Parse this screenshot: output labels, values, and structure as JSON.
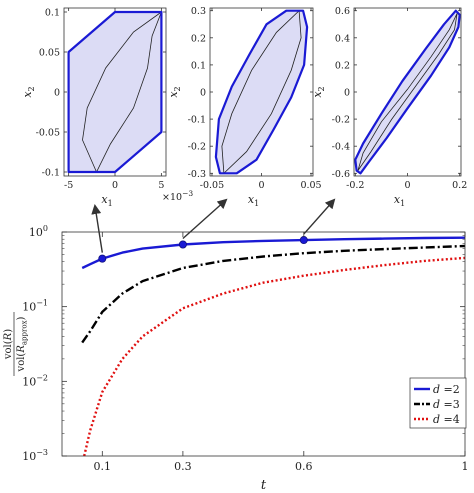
{
  "chart_data": [
    {
      "type": "line",
      "subtype": "reachable-set-x1-x2",
      "xlabel": "x_1",
      "ylabel": "x_2",
      "x_exponent_label": "×10",
      "x_exponent_power": "−3",
      "xlim": [
        -0.0055,
        0.0055
      ],
      "ylim": [
        -0.105,
        0.105
      ],
      "xticks": [
        -0.005,
        0,
        0.005
      ],
      "xtick_labels": [
        "-5",
        "0",
        "5"
      ],
      "yticks": [
        -0.1,
        -0.05,
        0,
        0.05,
        0.1
      ],
      "ytick_labels": [
        "-0.1",
        "-0.05",
        "0",
        "0.05",
        "0.1"
      ],
      "outer_polygon": [
        [
          -0.005,
          -0.1
        ],
        [
          -0.005,
          0.05
        ],
        [
          0.0,
          0.1
        ],
        [
          0.005,
          0.1
        ],
        [
          0.005,
          -0.05
        ],
        [
          0.0,
          -0.1
        ]
      ],
      "inner_region": [
        [
          -0.002,
          -0.1
        ],
        [
          -0.0035,
          -0.06
        ],
        [
          -0.003,
          -0.02
        ],
        [
          -0.001,
          0.03
        ],
        [
          0.002,
          0.075
        ],
        [
          0.005,
          0.1
        ],
        [
          0.004,
          0.07
        ],
        [
          0.0035,
          0.03
        ],
        [
          0.002,
          -0.02
        ],
        [
          -0.0005,
          -0.065
        ]
      ],
      "outer_color": "#1a1ad4",
      "fill_color": "#dcdcf5"
    },
    {
      "type": "line",
      "subtype": "reachable-set-x1-x2",
      "xlabel": "x_1",
      "ylabel": "x_2",
      "xlim": [
        -0.052,
        0.052
      ],
      "ylim": [
        -0.31,
        0.31
      ],
      "xticks": [
        -0.05,
        0,
        0.05
      ],
      "xtick_labels": [
        "-0.05",
        "0",
        "0.05"
      ],
      "yticks": [
        -0.3,
        -0.2,
        -0.1,
        0,
        0.1,
        0.2,
        0.3
      ],
      "ytick_labels": [
        "-0.3",
        "-0.2",
        "-0.1",
        "0",
        "0.1",
        "0.2",
        "0.3"
      ],
      "outer_polygon": [
        [
          -0.042,
          -0.3
        ],
        [
          -0.046,
          -0.24
        ],
        [
          -0.043,
          -0.1
        ],
        [
          -0.03,
          0.02
        ],
        [
          -0.012,
          0.14
        ],
        [
          0.005,
          0.25
        ],
        [
          0.025,
          0.3
        ],
        [
          0.042,
          0.3
        ],
        [
          0.046,
          0.24
        ],
        [
          0.043,
          0.1
        ],
        [
          0.03,
          -0.02
        ],
        [
          0.012,
          -0.14
        ],
        [
          -0.005,
          -0.25
        ],
        [
          -0.025,
          -0.3
        ]
      ],
      "inner_region": [
        [
          -0.038,
          -0.3
        ],
        [
          -0.04,
          -0.2
        ],
        [
          -0.03,
          -0.08
        ],
        [
          -0.01,
          0.08
        ],
        [
          0.015,
          0.22
        ],
        [
          0.038,
          0.3
        ],
        [
          0.04,
          0.2
        ],
        [
          0.03,
          0.08
        ],
        [
          0.01,
          -0.08
        ],
        [
          -0.015,
          -0.22
        ]
      ],
      "outer_color": "#1a1ad4",
      "fill_color": "#dcdcf5"
    },
    {
      "type": "line",
      "subtype": "reachable-set-x1-x2",
      "xlabel": "x_1",
      "ylabel": "x_2",
      "xlim": [
        -0.205,
        0.205
      ],
      "ylim": [
        -0.62,
        0.62
      ],
      "xticks": [
        -0.2,
        0,
        0.2
      ],
      "xtick_labels": [
        "-0.2",
        "0",
        "0.2"
      ],
      "yticks": [
        -0.6,
        -0.4,
        -0.2,
        0,
        0.2,
        0.4,
        0.6
      ],
      "ytick_labels": [
        "-0.6",
        "-0.4",
        "-0.2",
        "0",
        "0.2",
        "0.4",
        "0.6"
      ],
      "outer_polygon": [
        [
          -0.195,
          -0.58
        ],
        [
          -0.2,
          -0.5
        ],
        [
          -0.17,
          -0.38
        ],
        [
          -0.1,
          -0.16
        ],
        [
          -0.02,
          0.08
        ],
        [
          0.07,
          0.32
        ],
        [
          0.14,
          0.5
        ],
        [
          0.185,
          0.6
        ],
        [
          0.2,
          0.57
        ],
        [
          0.195,
          0.48
        ],
        [
          0.16,
          0.33
        ],
        [
          0.09,
          0.12
        ],
        [
          0.0,
          -0.12
        ],
        [
          -0.08,
          -0.34
        ],
        [
          -0.15,
          -0.52
        ],
        [
          -0.18,
          -0.6
        ]
      ],
      "inner_region": [
        [
          -0.19,
          -0.58
        ],
        [
          -0.17,
          -0.45
        ],
        [
          -0.1,
          -0.22
        ],
        [
          0.0,
          0.02
        ],
        [
          0.09,
          0.26
        ],
        [
          0.16,
          0.46
        ],
        [
          0.19,
          0.58
        ],
        [
          0.18,
          0.46
        ],
        [
          0.12,
          0.28
        ],
        [
          0.03,
          0.04
        ],
        [
          -0.06,
          -0.2
        ],
        [
          -0.14,
          -0.44
        ]
      ],
      "outer_color": "#1a1ad4",
      "fill_color": "#dcdcf5"
    },
    {
      "type": "line",
      "yscale": "log",
      "xlabel": "t",
      "ylabel": "vol(R) / vol(R_approx)",
      "ylabel_num": "vol(",
      "ylabel_num_sym": "R",
      "ylabel_num_end": ")",
      "ylabel_den": "vol(",
      "ylabel_den_sym": "R",
      "ylabel_den_sub": "approx",
      "ylabel_den_end": ")",
      "xlim": [
        0.0,
        1.0
      ],
      "ylim": [
        0.001,
        1.0
      ],
      "xticks": [
        0.1,
        0.3,
        0.6,
        1
      ],
      "xtick_labels": [
        "0.1",
        "0.3",
        "0.6",
        "1"
      ],
      "yticks": [
        0.001,
        0.01,
        0.1,
        1
      ],
      "ytick_labels": [
        "10",
        "10",
        "10",
        "10"
      ],
      "ytick_exponents": [
        "−3",
        "−2",
        "−1",
        "0"
      ],
      "legend_position": "bottom-right",
      "markers": [
        {
          "x": 0.1,
          "y": 0.44
        },
        {
          "x": 0.3,
          "y": 0.68
        },
        {
          "x": 0.6,
          "y": 0.78
        }
      ],
      "series": [
        {
          "name": "d =2",
          "color": "#1a1ad4",
          "dash": "solid",
          "x": [
            0.05,
            0.07,
            0.1,
            0.15,
            0.2,
            0.3,
            0.4,
            0.5,
            0.6,
            0.7,
            0.8,
            0.9,
            1.0
          ],
          "y": [
            0.33,
            0.37,
            0.44,
            0.53,
            0.6,
            0.68,
            0.73,
            0.76,
            0.78,
            0.8,
            0.815,
            0.83,
            0.84
          ]
        },
        {
          "name": "d =3",
          "color": "#000000",
          "dash": "dashdot",
          "x": [
            0.05,
            0.07,
            0.1,
            0.15,
            0.2,
            0.3,
            0.4,
            0.5,
            0.6,
            0.7,
            0.8,
            0.9,
            1.0
          ],
          "y": [
            0.033,
            0.047,
            0.085,
            0.15,
            0.22,
            0.33,
            0.41,
            0.47,
            0.52,
            0.56,
            0.59,
            0.62,
            0.65
          ]
        },
        {
          "name": "d =4",
          "color": "#e01010",
          "dash": "dotted",
          "x": [
            0.055,
            0.07,
            0.1,
            0.15,
            0.2,
            0.3,
            0.4,
            0.5,
            0.6,
            0.7,
            0.8,
            0.9,
            1.0
          ],
          "y": [
            0.001,
            0.0022,
            0.0072,
            0.02,
            0.04,
            0.095,
            0.15,
            0.21,
            0.26,
            0.31,
            0.36,
            0.41,
            0.45
          ]
        }
      ]
    }
  ]
}
